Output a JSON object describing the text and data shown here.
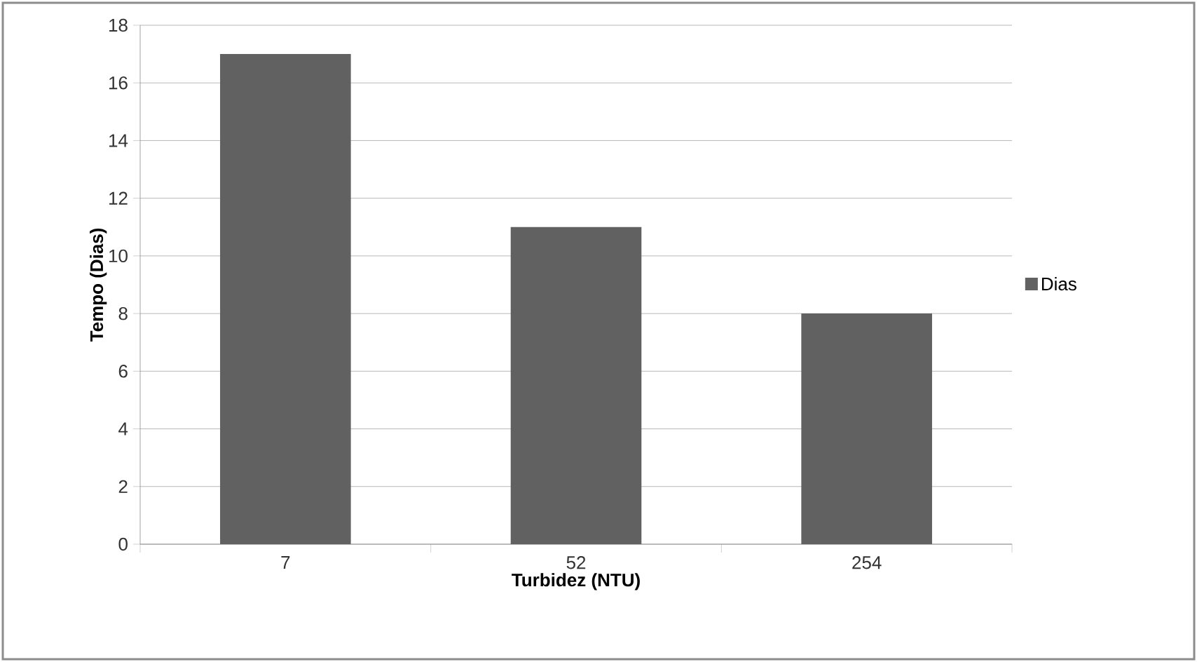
{
  "chart_data": {
    "type": "bar",
    "xlabel": "Turbidez (NTU)",
    "ylabel": "Tempo (Dias)",
    "categories": [
      "7",
      "52",
      "254"
    ],
    "series": [
      {
        "name": "Dias",
        "color": "#616161",
        "values": [
          17,
          11,
          8
        ]
      }
    ],
    "ylim": [
      0,
      18
    ],
    "yticks": [
      0,
      2,
      4,
      6,
      8,
      10,
      12,
      14,
      16,
      18
    ],
    "grid": "y",
    "legend": "right"
  }
}
